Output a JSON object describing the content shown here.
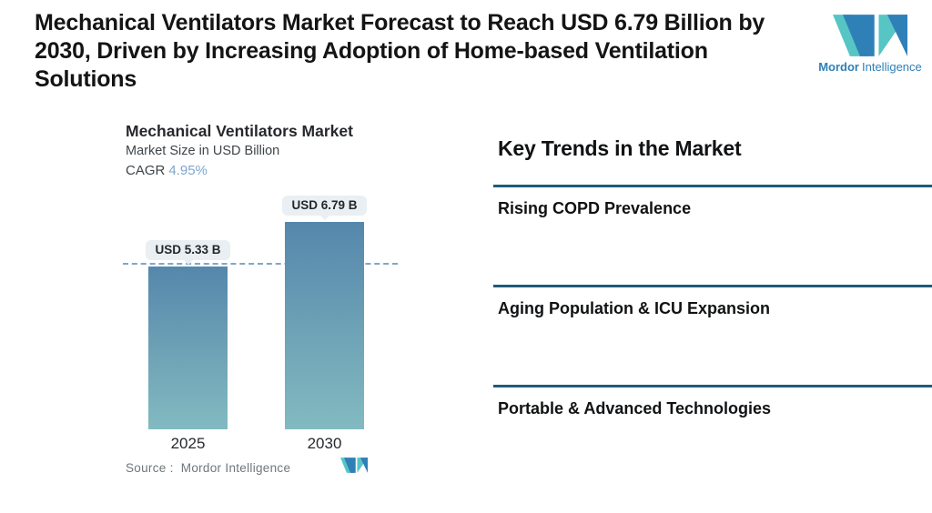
{
  "header": {
    "title": "Mechanical Ventilators Market Forecast to Reach USD 6.79 Billion by 2030, Driven by Increasing Adoption of Home-based Ventilation Solutions"
  },
  "brand": {
    "name_bold": "Mordor",
    "name_light": "Intelligence",
    "colors": {
      "teal": "#56C5C4",
      "blue": "#2E80B7"
    }
  },
  "chart": {
    "title": "Mechanical Ventilators Market",
    "subtitle": "Market Size in USD Billion",
    "cagr_label": "CAGR",
    "cagr_value": "4.95%",
    "source_label": "Source :  Mordor Intelligence",
    "bars": [
      {
        "year": "2025",
        "label": "USD 5.33 B",
        "value": 5.33
      },
      {
        "year": "2030",
        "label": "USD 6.79 B",
        "value": 6.79
      }
    ],
    "colors": {
      "bar_gradient_top": "#5587AC",
      "bar_gradient_bottom": "#82BAC1",
      "dashed_line": "#7FA6CC",
      "badge_bg": "#E9EFF2",
      "cagr_accent": "#7FA6CC",
      "divider": "#1E5B7A"
    }
  },
  "chart_data": {
    "type": "bar",
    "categories": [
      "2025",
      "2030"
    ],
    "values": [
      5.33,
      6.79
    ],
    "series": [
      {
        "name": "Market Size",
        "values": [
          5.33,
          6.79
        ]
      }
    ],
    "title": "Mechanical Ventilators Market",
    "xlabel": "",
    "ylabel": "Market Size in USD Billion",
    "ylim": [
      0,
      6.79
    ],
    "grid": false,
    "legend": "none",
    "annotations": [
      "USD 5.33 B",
      "USD 6.79 B",
      "CAGR 4.95%"
    ],
    "reference_line": {
      "y": 5.33,
      "style": "dashed"
    }
  },
  "trends": {
    "heading": "Key Trends in the Market",
    "items": [
      "Rising COPD Prevalence",
      "Aging Population & ICU Expansion",
      "Portable & Advanced Technologies"
    ]
  }
}
